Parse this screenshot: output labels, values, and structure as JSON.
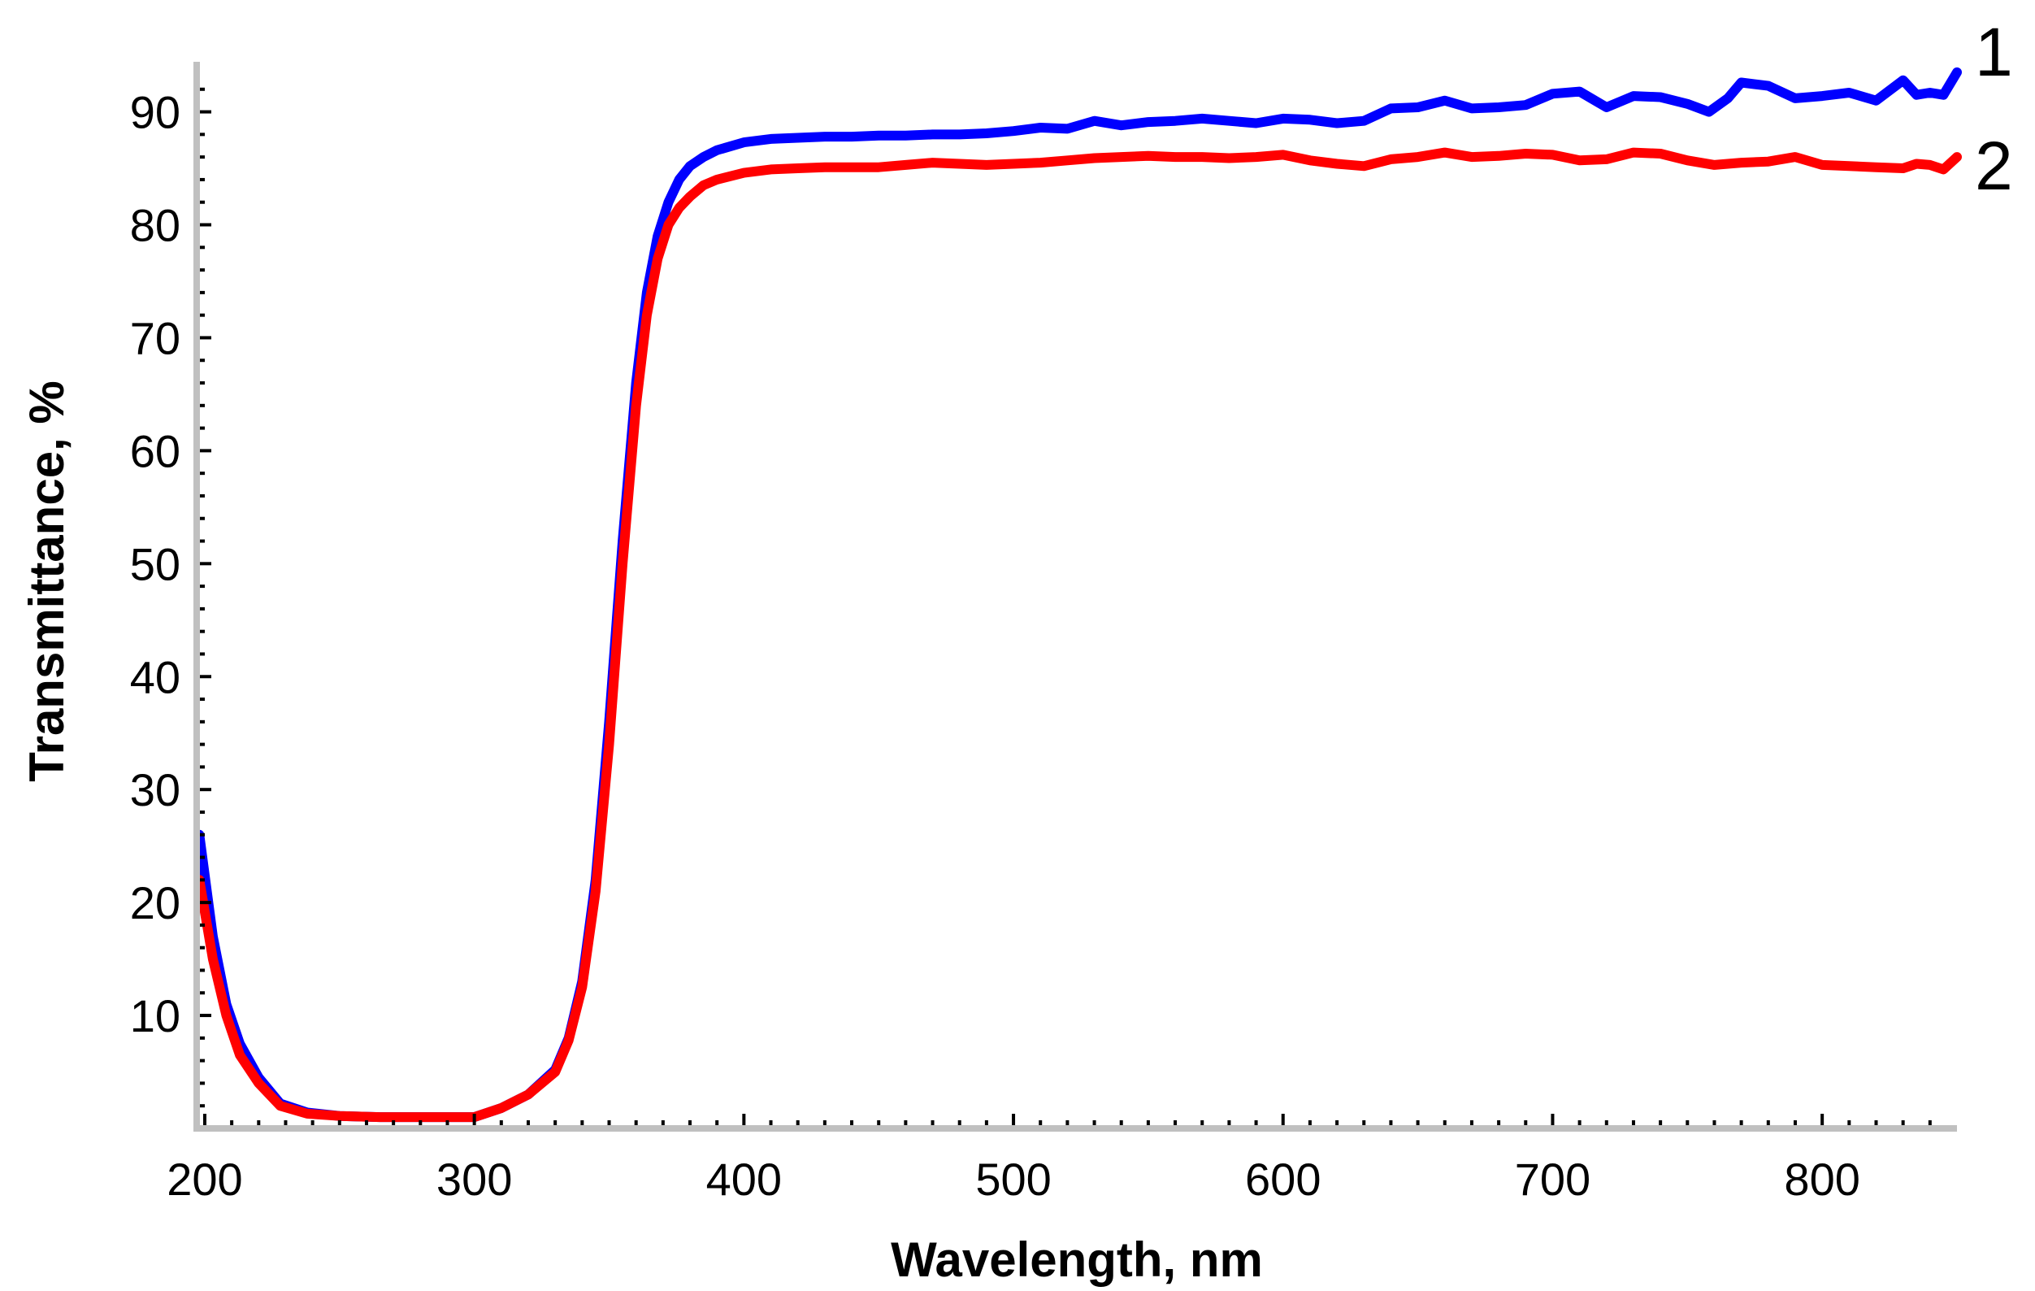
{
  "chart_data": {
    "type": "line",
    "title": "",
    "xlabel": "Wavelength, nm",
    "ylabel": "Transmittance, %",
    "xlim": [
      197,
      850
    ],
    "ylim": [
      0,
      94
    ],
    "xticks": [
      200,
      300,
      400,
      500,
      600,
      700,
      800
    ],
    "yticks": [
      10,
      20,
      30,
      40,
      50,
      60,
      70,
      80,
      90
    ],
    "grid": false,
    "series": [
      {
        "name": "1",
        "color": "#0000ff",
        "x": [
          198,
          203,
          208,
          213,
          220,
          228,
          238,
          250,
          265,
          280,
          300,
          310,
          320,
          330,
          335,
          340,
          345,
          350,
          355,
          360,
          364,
          368,
          372,
          376,
          380,
          385,
          390,
          400,
          410,
          420,
          430,
          440,
          450,
          460,
          470,
          480,
          490,
          500,
          510,
          520,
          530,
          540,
          550,
          560,
          570,
          580,
          590,
          600,
          610,
          620,
          630,
          640,
          650,
          660,
          670,
          680,
          690,
          700,
          710,
          720,
          730,
          740,
          750,
          758,
          765,
          770,
          780,
          790,
          800,
          810,
          820,
          830,
          835,
          840,
          845,
          850
        ],
        "values": [
          26,
          17,
          11,
          7.5,
          4.5,
          2.2,
          1.4,
          1.1,
          1.0,
          1.0,
          1.0,
          1.8,
          3.0,
          5.2,
          8.0,
          13,
          22,
          36,
          52,
          66,
          74,
          79,
          82,
          84,
          85.2,
          86,
          86.6,
          87.3,
          87.6,
          87.7,
          87.8,
          87.8,
          87.9,
          87.9,
          88.0,
          88.0,
          88.1,
          88.3,
          88.6,
          88.5,
          89.2,
          88.8,
          89.1,
          89.2,
          89.4,
          89.2,
          89.0,
          89.4,
          89.3,
          89.0,
          89.2,
          90.3,
          90.4,
          91.0,
          90.3,
          90.4,
          90.6,
          91.6,
          91.8,
          90.4,
          91.4,
          91.3,
          90.7,
          90.0,
          91.2,
          92.6,
          92.3,
          91.2,
          91.4,
          91.7,
          91.0,
          92.8,
          91.5,
          91.7,
          91.5,
          93.5
        ]
      },
      {
        "name": "2",
        "color": "#ff0000",
        "x": [
          198,
          203,
          208,
          213,
          220,
          228,
          238,
          250,
          265,
          280,
          300,
          310,
          320,
          330,
          335,
          340,
          345,
          350,
          355,
          360,
          364,
          368,
          372,
          376,
          380,
          385,
          390,
          400,
          410,
          420,
          430,
          440,
          450,
          460,
          470,
          480,
          490,
          500,
          510,
          520,
          530,
          540,
          550,
          560,
          570,
          580,
          590,
          600,
          610,
          620,
          630,
          640,
          650,
          660,
          670,
          680,
          690,
          700,
          710,
          720,
          730,
          740,
          750,
          760,
          770,
          780,
          790,
          800,
          810,
          820,
          830,
          835,
          840,
          845,
          850
        ],
        "values": [
          22,
          15,
          10,
          6.5,
          4,
          2.0,
          1.3,
          1.1,
          1.0,
          1.0,
          1.0,
          1.8,
          3.0,
          5.0,
          7.8,
          12.5,
          21,
          34,
          50,
          64,
          72,
          77,
          80,
          81.5,
          82.5,
          83.5,
          84.0,
          84.6,
          84.9,
          85.0,
          85.1,
          85.1,
          85.1,
          85.3,
          85.5,
          85.4,
          85.3,
          85.4,
          85.5,
          85.7,
          85.9,
          86.0,
          86.1,
          86.0,
          86.0,
          85.9,
          86.0,
          86.2,
          85.7,
          85.4,
          85.2,
          85.8,
          86.0,
          86.4,
          86.0,
          86.1,
          86.3,
          86.2,
          85.7,
          85.8,
          86.4,
          86.3,
          85.7,
          85.3,
          85.5,
          85.6,
          86.0,
          85.3,
          85.2,
          85.1,
          85.0,
          85.4,
          85.3,
          84.9,
          86.0
        ]
      }
    ],
    "annotations": [
      {
        "text": "1",
        "series": "1"
      },
      {
        "text": "2",
        "series": "2"
      }
    ]
  }
}
